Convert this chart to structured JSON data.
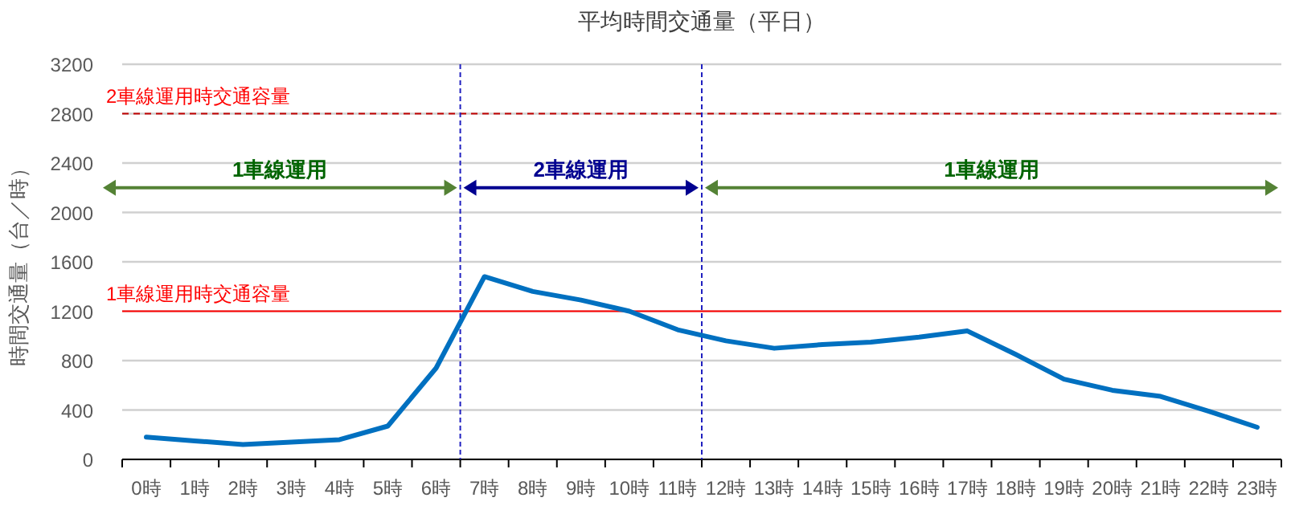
{
  "chart_data": {
    "type": "line",
    "title": "平均時間交通量（平日）",
    "ylabel": "時間交通量（台／時）",
    "categories": [
      "0時",
      "1時",
      "2時",
      "3時",
      "4時",
      "5時",
      "6時",
      "7時",
      "8時",
      "9時",
      "10時",
      "11時",
      "12時",
      "13時",
      "14時",
      "15時",
      "16時",
      "17時",
      "18時",
      "19時",
      "20時",
      "21時",
      "22時",
      "23時"
    ],
    "series": [
      {
        "color": "#0070c0",
        "values": [
          180,
          150,
          120,
          140,
          160,
          270,
          740,
          1480,
          1360,
          1290,
          1200,
          1050,
          960,
          900,
          930,
          950,
          990,
          1040,
          850,
          650,
          560,
          510,
          390,
          260
        ]
      }
    ],
    "ylim": [
      0,
      3200
    ],
    "yticks": [
      0,
      400,
      800,
      1200,
      1600,
      2000,
      2400,
      2800,
      3200
    ],
    "grid": "y",
    "marker": "none",
    "line_style": "solid",
    "annotations": [
      "1車線運用",
      "2車線運用",
      "1車線運用"
    ],
    "ref_lines": [
      {
        "axis": "y",
        "value": 2800,
        "label": "2車線運用時交通容量",
        "color": "#c00000",
        "line_style": "dashed"
      },
      {
        "axis": "y",
        "value": 1200,
        "label": "1車線運用時交通容量",
        "color": "#ff0000",
        "line_style": "solid"
      }
    ]
  }
}
